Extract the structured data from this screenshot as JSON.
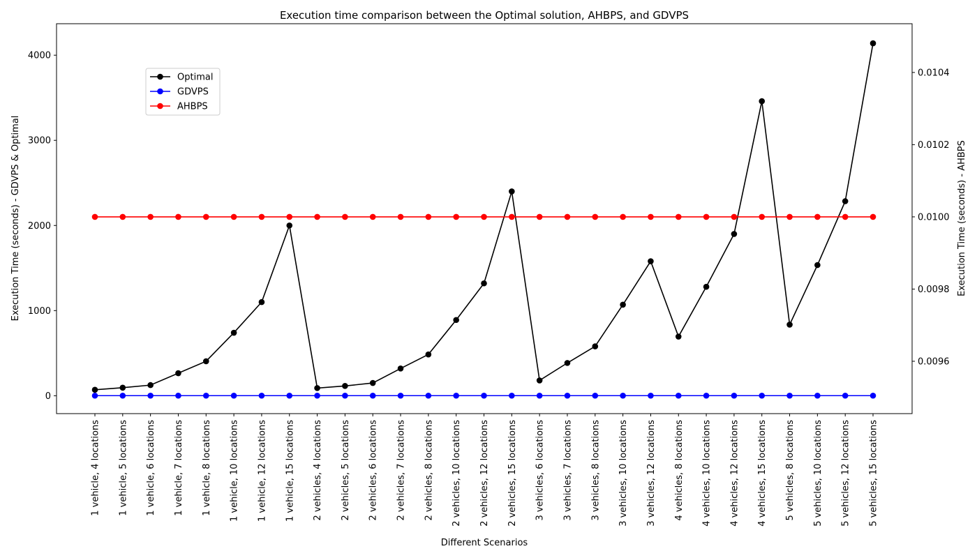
{
  "chart_data": {
    "type": "line",
    "title": "Execution time comparison between the Optimal solution, AHBPS, and GDVPS",
    "xlabel": "Different Scenarios",
    "ylabel_left": "Execution Time (seconds) - GDVPS & Optimal",
    "ylabel_right": "Execution Time (seconds) - AHBPS",
    "categories": [
      "1 vehicle, 4 locations",
      "1 vehicle, 5 locations",
      "1 vehicle, 6 locations",
      "1 vehicle, 7 locations",
      "1 vehicle, 8 locations",
      "1 vehicle, 10 locations",
      "1 vehicle, 12 locations",
      "1 vehicle, 15 locations",
      "2 vehicles, 4 locations",
      "2 vehicles, 5 locations",
      "2 vehicles, 6 locations",
      "2 vehicles, 7 locations",
      "2 vehicles, 8 locations",
      "2 vehicles, 10 locations",
      "2 vehicles, 12 locations",
      "2 vehicles, 15 locations",
      "3 vehicles, 6 locations",
      "3 vehicles, 7 locations",
      "3 vehicles, 8 locations",
      "3 vehicles, 10 locations",
      "3 vehicles, 12 locations",
      "4 vehicles, 8 locations",
      "4 vehicles, 10 locations",
      "4 vehicles, 12 locations",
      "4 vehicles, 15 locations",
      "5 vehicles, 8 locations",
      "5 vehicles, 10 locations",
      "5 vehicles, 12 locations",
      "5 vehicles, 15 locations"
    ],
    "left_axis": {
      "ylim": [
        -210,
        4370
      ],
      "ticks": [
        0,
        1000,
        2000,
        3000,
        4000
      ]
    },
    "right_axis": {
      "ylim": [
        0.009455,
        0.010535
      ],
      "ticks": [
        0.0096,
        0.0098,
        0.01,
        0.0102,
        0.0104
      ],
      "tick_labels": [
        "0.0096",
        "0.0098",
        "0.0100",
        "0.0102",
        "0.0104"
      ]
    },
    "series": [
      {
        "name": "Optimal",
        "axis": "left",
        "color": "#000000",
        "values": [
          70,
          95,
          125,
          265,
          405,
          740,
          1100,
          2000,
          90,
          115,
          150,
          320,
          485,
          890,
          1320,
          2400,
          180,
          385,
          580,
          1070,
          1580,
          695,
          1280,
          1900,
          3460,
          835,
          1535,
          2285,
          4140
        ]
      },
      {
        "name": "GDVPS",
        "axis": "left",
        "color": "#0000ff",
        "values": [
          1,
          1,
          1,
          1,
          1,
          1,
          1,
          1,
          1,
          1,
          1,
          1,
          1,
          1,
          1,
          1,
          1,
          1,
          1,
          1,
          1,
          1,
          1,
          1,
          1,
          1,
          1,
          1,
          1
        ]
      },
      {
        "name": "AHBPS",
        "axis": "right",
        "color": "#ff0000",
        "values": [
          0.01,
          0.01,
          0.01,
          0.01,
          0.01,
          0.01,
          0.01,
          0.01,
          0.01,
          0.01,
          0.01,
          0.01,
          0.01,
          0.01,
          0.01,
          0.01,
          0.01,
          0.01,
          0.01,
          0.01,
          0.01,
          0.01,
          0.01,
          0.01,
          0.01,
          0.01,
          0.01,
          0.01,
          0.01
        ]
      }
    ],
    "legend": {
      "position": "upper-left",
      "entries": [
        "Optimal",
        "GDVPS",
        "AHBPS"
      ]
    },
    "grid": false
  }
}
